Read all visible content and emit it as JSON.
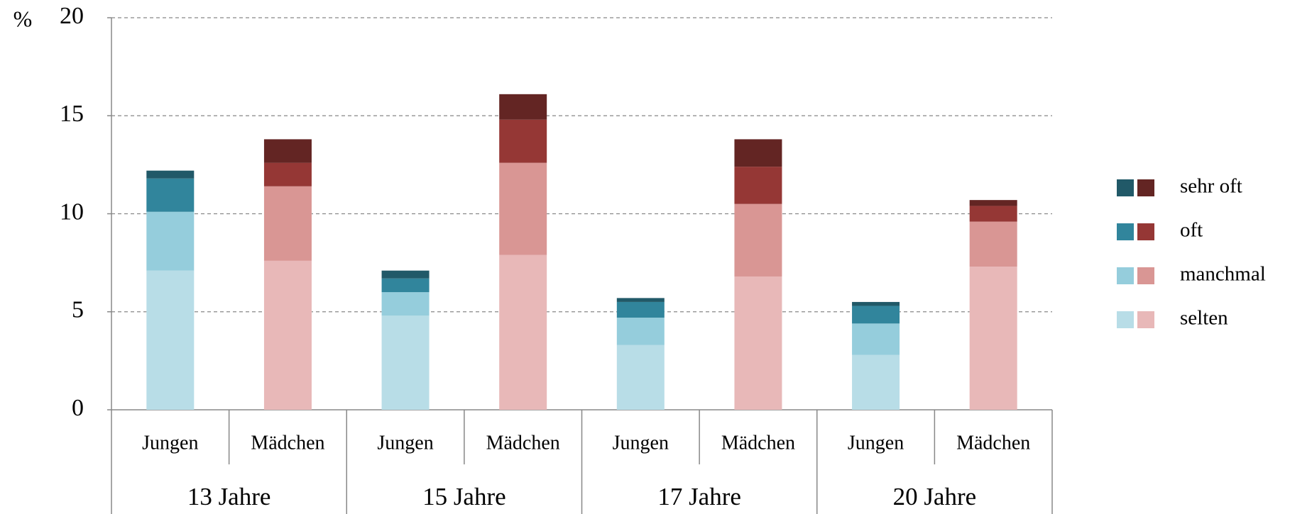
{
  "chart_data": {
    "type": "stacked_bar",
    "y_label": "%",
    "categories": [
      "Jungen",
      "Mädchen",
      "Jungen",
      "Mädchen",
      "Jungen",
      "Mädchen",
      "Jungen",
      "Mädchen"
    ],
    "groups": [
      "13 Jahre",
      "15 Jahre",
      "17 Jahre",
      "20 Jahre"
    ],
    "series": [
      {
        "name": "selten",
        "colors": [
          "#b8dde7",
          "#e8b8b8",
          "#b8dde7",
          "#e8b8b8",
          "#b8dde7",
          "#e8b8b8",
          "#b8dde7",
          "#e8b8b8"
        ],
        "values": [
          7.1,
          7.6,
          4.8,
          7.9,
          3.3,
          6.8,
          2.8,
          7.3
        ]
      },
      {
        "name": "manchmal",
        "colors": [
          "#95cddc",
          "#d99694",
          "#95cddc",
          "#d99694",
          "#95cddc",
          "#d99694",
          "#95cddc",
          "#d99694"
        ],
        "values": [
          3.0,
          3.8,
          1.2,
          4.7,
          1.4,
          3.7,
          1.6,
          2.3
        ]
      },
      {
        "name": "oft",
        "colors": [
          "#31859c",
          "#953735",
          "#31859c",
          "#953735",
          "#31859c",
          "#953735",
          "#31859c",
          "#953735"
        ],
        "values": [
          1.7,
          1.2,
          0.7,
          2.2,
          0.8,
          1.9,
          0.9,
          0.8
        ]
      },
      {
        "name": "sehr oft",
        "colors": [
          "#215968",
          "#632523",
          "#215968",
          "#632523",
          "#215968",
          "#632523",
          "#215968",
          "#632523"
        ],
        "values": [
          0.4,
          1.2,
          0.4,
          1.3,
          0.2,
          1.4,
          0.2,
          0.3
        ]
      }
    ],
    "ylim": [
      0,
      20
    ],
    "yticks": [
      0,
      5,
      10,
      15,
      20
    ],
    "grid": true,
    "legend": "right"
  }
}
